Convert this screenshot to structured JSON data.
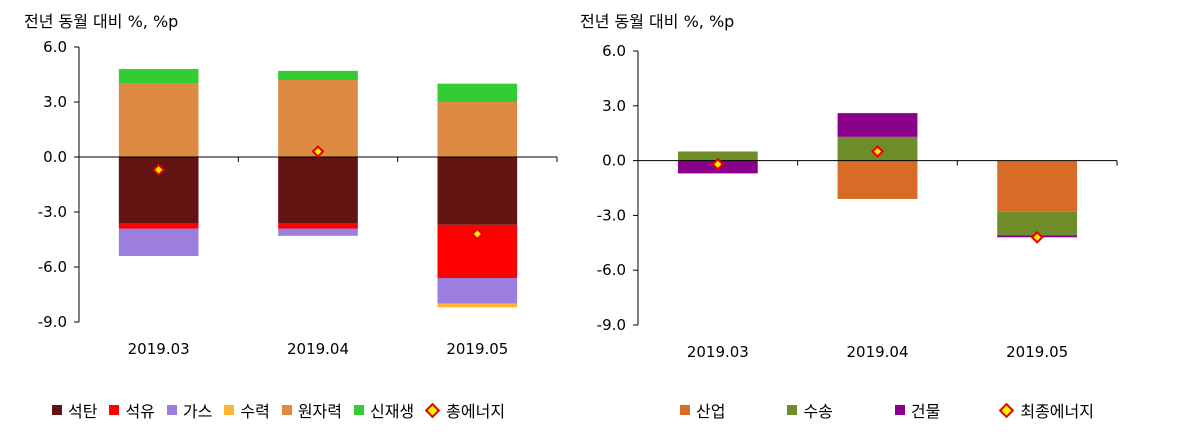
{
  "chart_data": [
    {
      "type": "bar",
      "stacked": true,
      "title": "",
      "ylabel": "전년 동월 대비 %, %p",
      "xlabel": "",
      "categories": [
        "2019.03",
        "2019.04",
        "2019.05"
      ],
      "ylim": [
        -9.0,
        6.0
      ],
      "yticks": [
        "6.0",
        "3.0",
        "0.0",
        "-3.0",
        "-6.0",
        "-9.0"
      ],
      "grid": false,
      "legend_position": "bottom",
      "series": [
        {
          "name": "석탄",
          "color": "#641313",
          "values": [
            -3.6,
            -3.6,
            -3.7
          ]
        },
        {
          "name": "석유",
          "color": "#ff0000",
          "values": [
            -0.3,
            -0.3,
            -2.9
          ]
        },
        {
          "name": "가스",
          "color": "#9b7ede",
          "values": [
            -1.5,
            -0.4,
            -1.4
          ]
        },
        {
          "name": "수력",
          "color": "#ffb732",
          "values": [
            0.0,
            0.0,
            -0.2
          ]
        },
        {
          "name": "원자력",
          "color": "#dd8a44",
          "values": [
            4.0,
            4.2,
            3.0
          ]
        },
        {
          "name": "신재생",
          "color": "#33cc33",
          "values": [
            0.8,
            0.5,
            1.0
          ]
        }
      ],
      "line_series": {
        "name": "총에너지",
        "marker": "diamond",
        "values": [
          -0.7,
          0.3,
          -4.2
        ]
      }
    },
    {
      "type": "bar",
      "stacked": true,
      "title": "",
      "ylabel": "전년 동월 대비 %, %p",
      "xlabel": "",
      "categories": [
        "2019.03",
        "2019.04",
        "2019.05"
      ],
      "ylim": [
        -9.0,
        6.0
      ],
      "yticks": [
        "6.0",
        "3.0",
        "0.0",
        "-3.0",
        "-6.0",
        "-9.0"
      ],
      "grid": false,
      "legend_position": "bottom",
      "series": [
        {
          "name": "산업",
          "color": "#d86b26",
          "values": [
            0.0,
            -2.1,
            -2.8
          ]
        },
        {
          "name": "수송",
          "color": "#6e8c2a",
          "values": [
            0.5,
            1.3,
            -1.3
          ]
        },
        {
          "name": "건물",
          "color": "#8b008b",
          "values": [
            -0.7,
            1.3,
            -0.1
          ]
        }
      ],
      "line_series": {
        "name": "최종에너지",
        "marker": "diamond",
        "values": [
          -0.2,
          0.5,
          -4.2
        ]
      }
    }
  ]
}
